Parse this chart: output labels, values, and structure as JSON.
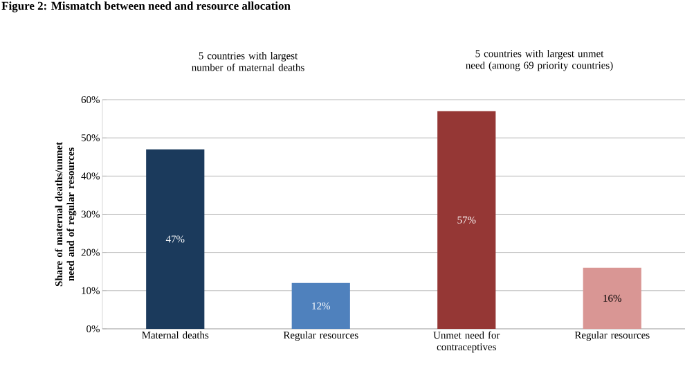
{
  "chart_data": {
    "type": "bar",
    "title": "Figure 2: Mismatch between need and resource allocation",
    "ylabel": "Share of maternal deaths/unmet need and of regular resources",
    "annotations": [
      "5 countries with largest number of maternal deaths",
      "5 countries with largest unmet need (among 69 priority countries)"
    ],
    "categories": [
      "Maternal deaths",
      "Regular resources",
      "Unmet need for contraceptives",
      "Regular resources"
    ],
    "values": [
      47,
      12,
      57,
      16
    ],
    "value_labels": [
      "47%",
      "12%",
      "57%",
      "16%"
    ],
    "colors": [
      "#1b3a5c",
      "#4f81bd",
      "#953735",
      "#d99694"
    ],
    "ylim": [
      0,
      60
    ],
    "yticks": [
      {
        "value": 0,
        "label": "0%"
      },
      {
        "value": 10,
        "label": "10%"
      },
      {
        "value": 20,
        "label": "20%"
      },
      {
        "value": 30,
        "label": "30%"
      },
      {
        "value": 40,
        "label": "40%"
      },
      {
        "value": 50,
        "label": "50%"
      },
      {
        "value": 60,
        "label": "60%"
      }
    ],
    "grid": "y"
  }
}
